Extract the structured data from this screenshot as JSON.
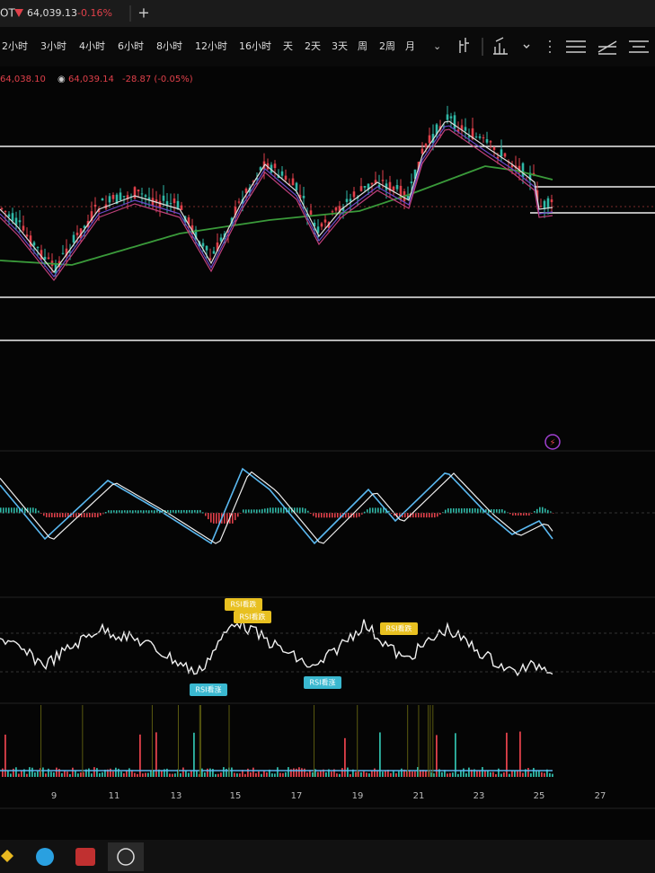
{
  "header": {
    "symbol": "OT",
    "price": "64,039.13",
    "change": "-0.16%"
  },
  "toolbar": {
    "timeframes": [
      "2小时",
      "3小时",
      "4小时",
      "6小时",
      "8小时",
      "12小时",
      "16小时",
      "天",
      "2天",
      "3天",
      "周",
      "2周",
      "月"
    ]
  },
  "info": {
    "value_a": "64,038.10",
    "value_b": "64,039.14",
    "change": "-28.87 (-0.05%)"
  },
  "rsi_tags": [
    {
      "text": "RSI看跌",
      "kind": "bear"
    },
    {
      "text": "RSI看跌",
      "kind": "bear"
    },
    {
      "text": "RSI看跌",
      "kind": "bear"
    },
    {
      "text": "RSI看涨",
      "kind": "bull"
    },
    {
      "text": "RSI看涨",
      "kind": "bull"
    }
  ],
  "x_axis": {
    "labels": [
      "9",
      "11",
      "13",
      "15",
      "17",
      "19",
      "21",
      "23",
      "25",
      "27"
    ]
  }
}
